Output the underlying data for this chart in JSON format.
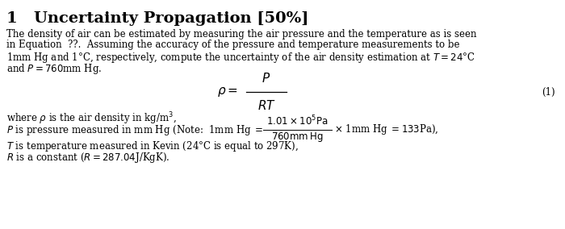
{
  "background_color": "#ffffff",
  "title": "1   Uncertainty Propagation [50%]",
  "title_fontsize": 14,
  "body_fontsize": 8.5,
  "eq_fontsize": 11,
  "eq_label": "(1)",
  "line1": "The density of air can be estimated by measuring the air pressure and the temperature as is seen",
  "line2": "in Equation  ??.  Assuming the accuracy of the pressure and temperature measurements to be",
  "line3": "1mm Hg and 1°C, respectively, compute the uncertainty of the air density estimation at $T = 24$°C",
  "line4": "and $P = 760$mm Hg.",
  "where_line": "where $\\rho$ is the air density in kg/m$^3$,",
  "p_part1": "$P$ is pressure measured in mm Hg (Note:  1mm Hg $=$",
  "frac_num": "$1.01 \\times 10^5\\mathrm{Pa}$",
  "frac_den": "$760\\mathrm{mm\\,Hg}$",
  "p_part2": "$\\times$ 1mm Hg $= 133$Pa),",
  "t_line": "$T$ is temperature measured in Kevin (24°C is equal to 297K),",
  "r_line": "$R$ is a constant ($R = 287.04$J/KgK)."
}
